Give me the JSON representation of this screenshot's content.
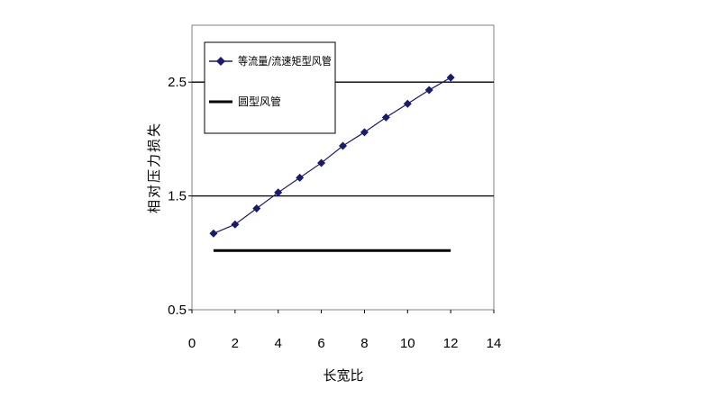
{
  "chart_data": {
    "type": "line",
    "title": "",
    "xlabel": "长宽比",
    "ylabel": "相对压力损失",
    "xlim": [
      0,
      14
    ],
    "ylim": [
      0.5,
      3.0
    ],
    "x_ticks": [
      "0",
      "2",
      "4",
      "6",
      "8",
      "10",
      "12",
      "14"
    ],
    "y_ticks": [
      "0.5",
      "1.5",
      "2.5"
    ],
    "grid": "horizontal",
    "legend_position": "top-left",
    "series": [
      {
        "name": "等流量/流速矩型风管",
        "color": "#1a1a6e",
        "marker": "diamond",
        "x": [
          1,
          2,
          3,
          4,
          5,
          6,
          7,
          8,
          9,
          10,
          11,
          12
        ],
        "y": [
          1.17,
          1.25,
          1.39,
          1.53,
          1.66,
          1.79,
          1.94,
          2.06,
          2.19,
          2.31,
          2.43,
          2.54
        ]
      },
      {
        "name": "圆型风管",
        "color": "#000000",
        "marker": "none",
        "x": [
          1,
          12
        ],
        "y": [
          1.02,
          1.02
        ]
      }
    ]
  }
}
